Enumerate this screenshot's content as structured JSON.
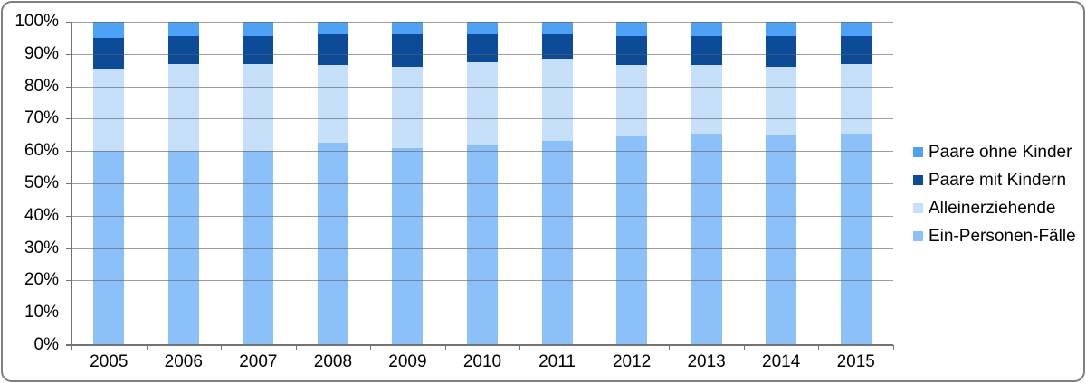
{
  "chart_data": {
    "type": "bar",
    "stacked": true,
    "percent_stacked": true,
    "title": "",
    "xlabel": "",
    "ylabel": "",
    "ylim": [
      0,
      100
    ],
    "grid": true,
    "categories": [
      "2005",
      "2006",
      "2007",
      "2008",
      "2009",
      "2010",
      "2011",
      "2012",
      "2013",
      "2014",
      "2015"
    ],
    "series": [
      {
        "name": "Ein-Personen-Fälle",
        "color": "#8BC0F8",
        "values": [
          60,
          60,
          60,
          62.5,
          61,
          62,
          63,
          64.5,
          65.5,
          65,
          65.5
        ]
      },
      {
        "name": "Alleinerziehende",
        "color": "#C6E0FA",
        "values": [
          25.5,
          27,
          27,
          24,
          25,
          25.5,
          25.5,
          22,
          21,
          21,
          21.5
        ]
      },
      {
        "name": "Paare mit Kindern",
        "color": "#0B4B97",
        "values": [
          9.5,
          8.5,
          8.5,
          9.5,
          10,
          8.5,
          7.5,
          9,
          9,
          9.5,
          8.5
        ]
      },
      {
        "name": "Paare ohne Kinder",
        "color": "#4DA2F8",
        "values": [
          5,
          4.5,
          4.5,
          4,
          4,
          4,
          4,
          4.5,
          4.5,
          4.5,
          4.5
        ]
      }
    ],
    "yticks": [
      "100%",
      "90%",
      "80%",
      "70%",
      "60%",
      "50%",
      "40%",
      "30%",
      "20%",
      "10%",
      "0%"
    ],
    "legend": {
      "position": "right",
      "items": [
        {
          "label": "Paare ohne Kinder",
          "color": "#4DA2F8"
        },
        {
          "label": "Paare mit Kindern",
          "color": "#0B4B97"
        },
        {
          "label": "Alleinerziehende",
          "color": "#C6E0FA"
        },
        {
          "label": "Ein-Personen-Fälle",
          "color": "#8BC0F8"
        }
      ]
    }
  },
  "colors": {
    "background": "#FFFFFF",
    "frame_border": "#7F7F7F",
    "gridline": "#8C8C8C",
    "axis": "#737373",
    "text": "#000000"
  }
}
